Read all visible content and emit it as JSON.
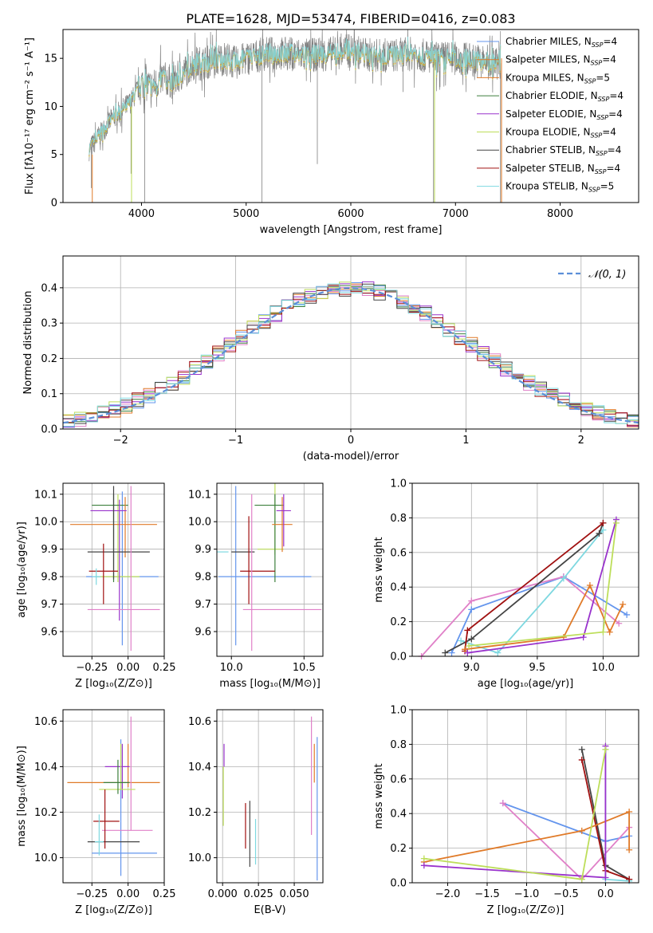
{
  "figure_title": "PLATE=1628, MJD=53474, FIBERID=0416, z=0.083",
  "series_colors": [
    "#6495ED",
    "#9932CC",
    "#BDDE5A",
    "#444444",
    "#E07A28",
    "#E080C8",
    "#3C7F3C",
    "#A01010",
    "#7ED8E0"
  ],
  "chart_data": [
    {
      "type": "line",
      "panel": "spectrum",
      "xlabel": "wavelength [Angstrom, rest frame]",
      "ylabel": "Flux [fλ10⁻¹⁷ erg cm⁻² s⁻¹ A⁻¹]",
      "xlim": [
        3250,
        8750
      ],
      "ylim": [
        0,
        18
      ],
      "xticks": [
        4000,
        5000,
        6000,
        7000,
        8000
      ],
      "yticks": [
        0,
        5,
        10,
        15
      ],
      "grid": false,
      "legend_position": "right",
      "x": [
        3500,
        3600,
        3700,
        3800,
        3900,
        4000,
        4100,
        4200,
        4300,
        4400,
        4500,
        4600,
        4700,
        4800,
        4900,
        5000,
        5200,
        5400,
        5600,
        5800,
        6000,
        6200,
        6400,
        6600,
        6800,
        7000,
        7200,
        7400
      ],
      "observed": [
        5.5,
        7,
        8.5,
        9.5,
        10.5,
        12.5,
        12,
        13,
        12.5,
        13.5,
        14.5,
        14.5,
        14.8,
        15,
        14.5,
        15,
        15.5,
        15.5,
        15.3,
        15.5,
        15.8,
        15.3,
        15.3,
        15.5,
        15,
        15,
        14.8,
        14.5
      ],
      "legend": [
        {
          "name": "Chabrier MILES, N",
          "sub": "SSP",
          "val": "=4",
          "color": "#6495ED"
        },
        {
          "name": "Salpeter MILES, N",
          "sub": "SSP",
          "val": "=4",
          "color": "#E07A28"
        },
        {
          "name": "Kroupa MILES, N",
          "sub": "SSP",
          "val": "=5",
          "color": "#E07A28"
        },
        {
          "name": "Chabrier ELODIE, N",
          "sub": "SSP",
          "val": "=4",
          "color": "#3C7F3C"
        },
        {
          "name": "Salpeter ELODIE, N",
          "sub": "SSP",
          "val": "=4",
          "color": "#9932CC"
        },
        {
          "name": "Kroupa ELODIE, N",
          "sub": "SSP",
          "val": "=4",
          "color": "#BDDE5A"
        },
        {
          "name": "Chabrier STELIB, N",
          "sub": "SSP",
          "val": "=4",
          "color": "#444444"
        },
        {
          "name": "Salpeter STELIB, N",
          "sub": "SSP",
          "val": "=4",
          "color": "#A01010"
        },
        {
          "name": "Kroupa STELIB, N",
          "sub": "SSP",
          "val": "=5",
          "color": "#7ED8E0"
        }
      ]
    },
    {
      "type": "histogram",
      "panel": "residuals",
      "xlabel": "(data-model)/error",
      "ylabel": "Normed distribution",
      "xlim": [
        -2.5,
        2.5
      ],
      "ylim": [
        0,
        0.49
      ],
      "xticks": [
        -2,
        -1,
        0,
        1,
        2
      ],
      "yticks": [
        0.0,
        0.1,
        0.2,
        0.3,
        0.4
      ],
      "grid": true,
      "legend_position": "top-right",
      "legend_label": "𝒩(0, 1)",
      "reference_curve": "standard normal N(0,1)",
      "bin_width": 0.1
    },
    {
      "type": "errorbar",
      "panel": "Z-age",
      "xlabel": "Z [log₁₀(Z/Z⊙)]",
      "ylabel": "age  [log₁₀(age/yr)]",
      "xlim": [
        -0.45,
        0.25
      ],
      "ylim": [
        9.51,
        10.14
      ],
      "xticks": [
        -0.25,
        0.0,
        0.25
      ],
      "yticks": [
        9.6,
        9.7,
        9.8,
        9.9,
        10.0,
        10.1
      ],
      "grid": true
    },
    {
      "type": "errorbar",
      "panel": "mass-age",
      "xlabel": "mass [log₁₀(M/M⊙)]",
      "ylabel": "",
      "xlim": [
        9.9,
        10.63
      ],
      "ylim": [
        9.51,
        10.14
      ],
      "xticks": [
        10.0,
        10.5
      ],
      "yticks": [
        9.6,
        9.7,
        9.8,
        9.9,
        10.0,
        10.1
      ],
      "grid": true
    },
    {
      "type": "line",
      "panel": "age-weight",
      "xlabel": "age  [log₁₀(age/yr)]",
      "ylabel": "mass weight",
      "xlim": [
        8.55,
        10.27
      ],
      "ylim": [
        0,
        1
      ],
      "xticks": [
        9.0,
        9.5,
        10.0
      ],
      "yticks": [
        0.0,
        0.2,
        0.4,
        0.6,
        0.8,
        1.0
      ],
      "grid": true,
      "series": [
        {
          "color": "#6495ED",
          "x": [
            8.85,
            9.0,
            9.7,
            10.18
          ],
          "y": [
            0.02,
            0.27,
            0.46,
            0.24
          ]
        },
        {
          "color": "#E080C8",
          "x": [
            8.62,
            9.0,
            9.7,
            10.12
          ],
          "y": [
            0.0,
            0.32,
            0.46,
            0.19
          ]
        },
        {
          "color": "#7ED8E0",
          "x": [
            8.92,
            9.2,
            9.7,
            10.0
          ],
          "y": [
            0.09,
            0.02,
            0.45,
            0.73
          ]
        },
        {
          "color": "#444444",
          "x": [
            8.8,
            9.0,
            9.97,
            10.0
          ],
          "y": [
            0.02,
            0.1,
            0.71,
            0.77
          ]
        },
        {
          "color": "#A01010",
          "x": [
            8.95,
            8.97,
            10.0
          ],
          "y": [
            0.03,
            0.15,
            0.77
          ]
        },
        {
          "color": "#E07A28",
          "x": [
            8.95,
            9.7,
            9.9,
            10.05,
            10.15
          ],
          "y": [
            0.04,
            0.11,
            0.41,
            0.14,
            0.3
          ]
        },
        {
          "color": "#9932CC",
          "x": [
            8.97,
            9.85,
            10.1
          ],
          "y": [
            0.02,
            0.11,
            0.79
          ]
        },
        {
          "color": "#BDDE5A",
          "x": [
            8.98,
            10.0,
            10.1
          ],
          "y": [
            0.06,
            0.14,
            0.77
          ]
        }
      ]
    },
    {
      "type": "errorbar",
      "panel": "Z-mass",
      "xlabel": "Z [log₁₀(Z/Z⊙)]",
      "ylabel": "mass [log₁₀(M/M⊙)]",
      "xlim": [
        -0.45,
        0.25
      ],
      "ylim": [
        9.89,
        10.65
      ],
      "xticks": [
        -0.25,
        0.0,
        0.25
      ],
      "yticks": [
        10.0,
        10.2,
        10.4,
        10.6
      ],
      "grid": true
    },
    {
      "type": "errorbar",
      "panel": "EBV-mass",
      "xlabel": "E(B-V)",
      "ylabel": "",
      "xlim": [
        -0.004,
        0.07
      ],
      "ylim": [
        9.89,
        10.65
      ],
      "xticks": [
        0.0,
        0.025,
        0.05
      ],
      "yticks": [
        10.0,
        10.2,
        10.4,
        10.6
      ],
      "grid": true
    },
    {
      "type": "line",
      "panel": "Z-weight",
      "xlabel": "Z [log₁₀(Z/Z⊙)]",
      "ylabel": "mass weight",
      "xlim": [
        -2.45,
        0.42
      ],
      "ylim": [
        0,
        1
      ],
      "xticks": [
        -2.0,
        -1.5,
        -1.0,
        -0.5,
        0.0
      ],
      "yticks": [
        0.0,
        0.2,
        0.4,
        0.6,
        0.8,
        1.0
      ],
      "grid": true,
      "series": [
        {
          "color": "#6495ED",
          "x": [
            -1.3,
            0.0,
            0.3
          ],
          "y": [
            0.46,
            0.24,
            0.27
          ]
        },
        {
          "color": "#E080C8",
          "x": [
            -1.3,
            -0.3,
            0.3
          ],
          "y": [
            0.46,
            0.02,
            0.32
          ]
        },
        {
          "color": "#7ED8E0",
          "x": [
            0.0,
            0.0,
            0.3
          ],
          "y": [
            0.77,
            0.02,
            0.01
          ]
        },
        {
          "color": "#444444",
          "x": [
            -0.3,
            0.0,
            0.3
          ],
          "y": [
            0.77,
            0.1,
            0.02
          ]
        },
        {
          "color": "#A01010",
          "x": [
            -0.3,
            0.0,
            0.3
          ],
          "y": [
            0.71,
            0.07,
            0.02
          ]
        },
        {
          "color": "#E07A28",
          "x": [
            -2.3,
            -0.3,
            0.3,
            0.3
          ],
          "y": [
            0.12,
            0.3,
            0.41,
            0.19
          ]
        },
        {
          "color": "#9932CC",
          "x": [
            -2.3,
            0.0,
            0.0
          ],
          "y": [
            0.1,
            0.03,
            0.79
          ]
        },
        {
          "color": "#BDDE5A",
          "x": [
            -2.3,
            -0.3,
            0.0
          ],
          "y": [
            0.14,
            0.02,
            0.77
          ]
        }
      ]
    }
  ],
  "errorbars": {
    "Z_age": [
      {
        "color": "#6495ED",
        "x": -0.04,
        "xerr": [
          0.25,
          0.25
        ],
        "y": 9.8,
        "yerr": [
          0.25,
          0.31
        ]
      },
      {
        "color": "#BDDE5A",
        "x": -0.07,
        "xerr": [
          0.15,
          0.15
        ],
        "y": 9.8,
        "yerr": [
          0.02,
          0.3
        ]
      },
      {
        "color": "#3C7F3C",
        "x": -0.1,
        "xerr": [
          0.15,
          0.1
        ],
        "y": 10.06,
        "yerr": [
          0.28,
          0.04
        ]
      },
      {
        "color": "#E07A28",
        "x": -0.02,
        "xerr": [
          0.38,
          0.22
        ],
        "y": 9.99,
        "yerr": [
          0.12,
          0.1
        ]
      },
      {
        "color": "#9932CC",
        "x": -0.06,
        "xerr": [
          0.2,
          0.05
        ],
        "y": 10.04,
        "yerr": [
          0.4,
          0.04
        ]
      },
      {
        "color": "#444444",
        "x": -0.1,
        "xerr": [
          0.18,
          0.25
        ],
        "y": 9.89,
        "yerr": [
          0.1,
          0.24
        ]
      },
      {
        "color": "#A01010",
        "x": -0.17,
        "xerr": [
          0.1,
          0.1
        ],
        "y": 9.82,
        "yerr": [
          0.12,
          0.1
        ]
      },
      {
        "color": "#E080C8",
        "x": 0.02,
        "xerr": [
          0.3,
          0.2
        ],
        "y": 9.68,
        "yerr": [
          0.15,
          0.45
        ]
      },
      {
        "color": "#7ED8E0",
        "x": -0.22,
        "xerr": [
          0.03,
          0.03
        ],
        "y": 9.8,
        "yerr": [
          0.03,
          0.03
        ]
      }
    ],
    "mass_age": [
      {
        "color": "#6495ED",
        "x": 10.03,
        "xerr": [
          0.12,
          0.52
        ],
        "y": 9.8,
        "yerr": [
          0.25,
          0.33
        ]
      },
      {
        "color": "#BDDE5A",
        "x": 10.3,
        "xerr": [
          0.12,
          0.06
        ],
        "y": 9.9,
        "yerr": [
          0.02,
          0.4
        ]
      },
      {
        "color": "#3C7F3C",
        "x": 10.3,
        "xerr": [
          0.14,
          0.06
        ],
        "y": 10.06,
        "yerr": [
          0.28,
          0.04
        ]
      },
      {
        "color": "#E07A28",
        "x": 10.35,
        "xerr": [
          0.07,
          0.07
        ],
        "y": 9.99,
        "yerr": [
          0.1,
          0.1
        ]
      },
      {
        "color": "#9932CC",
        "x": 10.36,
        "xerr": [
          0.05,
          0.05
        ],
        "y": 10.04,
        "yerr": [
          0.13,
          0.06
        ]
      },
      {
        "color": "#444444",
        "x": 10.0,
        "xerr": [
          0.0,
          0.16
        ],
        "y": 9.89,
        "yerr": [
          0.0,
          0.0
        ]
      },
      {
        "color": "#A01010",
        "x": 10.12,
        "xerr": [
          0.06,
          0.18
        ],
        "y": 9.82,
        "yerr": [
          0.12,
          0.2
        ]
      },
      {
        "color": "#E080C8",
        "x": 10.14,
        "xerr": [
          0.06,
          0.48
        ],
        "y": 9.68,
        "yerr": [
          0.15,
          0.42
        ]
      },
      {
        "color": "#7ED8E0",
        "x": 9.98,
        "xerr": [
          0.08,
          0.0
        ],
        "y": 9.89,
        "yerr": [
          0.0,
          0.0
        ]
      }
    ],
    "Z_mass": [
      {
        "color": "#6495ED",
        "x": -0.05,
        "xerr": [
          0.2,
          0.25
        ],
        "y": 10.02,
        "yerr": [
          0.1,
          0.5
        ]
      },
      {
        "color": "#E07A28",
        "x": 0.0,
        "xerr": [
          0.42,
          0.22
        ],
        "y": 10.33,
        "yerr": [
          0.02,
          0.17
        ]
      },
      {
        "color": "#E080C8",
        "x": 0.02,
        "xerr": [
          0.2,
          0.15
        ],
        "y": 10.12,
        "yerr": [
          0.0,
          0.5
        ]
      },
      {
        "color": "#9932CC",
        "x": -0.04,
        "xerr": [
          0.12,
          0.05
        ],
        "y": 10.4,
        "yerr": [
          0.14,
          0.1
        ]
      },
      {
        "color": "#BDDE5A",
        "x": -0.05,
        "xerr": [
          0.15,
          0.1
        ],
        "y": 10.3,
        "yerr": [
          0.0,
          0.2
        ]
      },
      {
        "color": "#3C7F3C",
        "x": -0.07,
        "xerr": [
          0.1,
          0.08
        ],
        "y": 10.33,
        "yerr": [
          0.05,
          0.1
        ]
      },
      {
        "color": "#444444",
        "x": -0.1,
        "xerr": [
          0.18,
          0.18
        ],
        "y": 10.07,
        "yerr": [
          0.0,
          0.0
        ]
      },
      {
        "color": "#A01010",
        "x": -0.16,
        "xerr": [
          0.08,
          0.1
        ],
        "y": 10.16,
        "yerr": [
          0.12,
          0.14
        ]
      },
      {
        "color": "#7ED8E0",
        "x": -0.2,
        "xerr": [
          0.03,
          0.03
        ],
        "y": 10.07,
        "yerr": [
          0.06,
          0.12
        ]
      }
    ],
    "EBV_mass": [
      {
        "color": "#BDDE5A",
        "x": 0.0005,
        "xerr": [
          0,
          0
        ],
        "y": 10.3,
        "yerr": [
          0.16,
          0.1
        ]
      },
      {
        "color": "#9932CC",
        "x": 0.001,
        "xerr": [
          0,
          0
        ],
        "y": 10.4,
        "yerr": [
          0.0,
          0.1
        ]
      },
      {
        "color": "#A01010",
        "x": 0.016,
        "xerr": [
          0,
          0
        ],
        "y": 10.16,
        "yerr": [
          0.12,
          0.08
        ]
      },
      {
        "color": "#444444",
        "x": 0.019,
        "xerr": [
          0,
          0
        ],
        "y": 10.1,
        "yerr": [
          0.14,
          0.15
        ]
      },
      {
        "color": "#7ED8E0",
        "x": 0.023,
        "xerr": [
          0,
          0
        ],
        "y": 10.07,
        "yerr": [
          0.1,
          0.1
        ]
      },
      {
        "color": "#E080C8",
        "x": 0.062,
        "xerr": [
          0,
          0
        ],
        "y": 10.4,
        "yerr": [
          0.3,
          0.22
        ]
      },
      {
        "color": "#E07A28",
        "x": 0.064,
        "xerr": [
          0,
          0
        ],
        "y": 10.33,
        "yerr": [
          0.0,
          0.17
        ]
      },
      {
        "color": "#6495ED",
        "x": 0.066,
        "xerr": [
          0,
          0
        ],
        "y": 10.2,
        "yerr": [
          0.3,
          0.33
        ]
      }
    ]
  }
}
